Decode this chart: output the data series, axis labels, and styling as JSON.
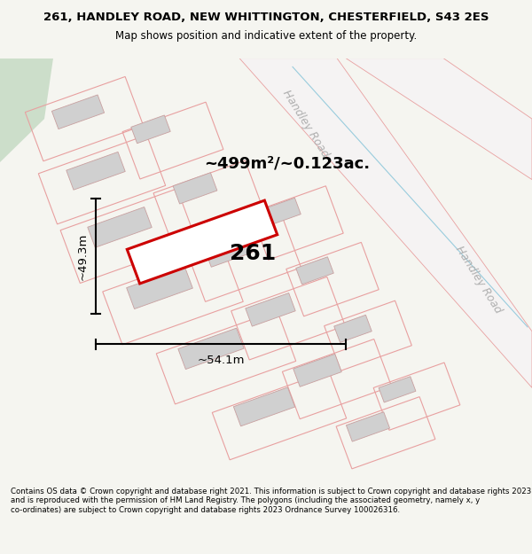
{
  "title_line1": "261, HANDLEY ROAD, NEW WHITTINGTON, CHESTERFIELD, S43 2ES",
  "title_line2": "Map shows position and indicative extent of the property.",
  "area_label": "~499m²/~0.123ac.",
  "property_number": "261",
  "dim_width": "~54.1m",
  "dim_height": "~49.3m",
  "road_label_top": "Handley Road",
  "road_label_bottom": "Handley Road",
  "footer_text": "Contains OS data © Crown copyright and database right 2021. This information is subject to Crown copyright and database rights 2023 and is reproduced with the permission of HM Land Registry. The polygons (including the associated geometry, namely x, y co-ordinates) are subject to Crown copyright and database rights 2023 Ordnance Survey 100026316.",
  "bg_color": "#f5f5f0",
  "map_bg": "#ffffff",
  "green_area_color": "#ccdeca",
  "plot_outline_color": "#e8a0a0",
  "property_fill": "#ffffff",
  "property_stroke": "#cc0000",
  "building_fill": "#d0d0d0",
  "building_stroke": "#c8a0a0",
  "road_label_color": "#b0b0b0",
  "road_strip_color": "#e8e8e8",
  "blue_line_color": "#99ccdd"
}
